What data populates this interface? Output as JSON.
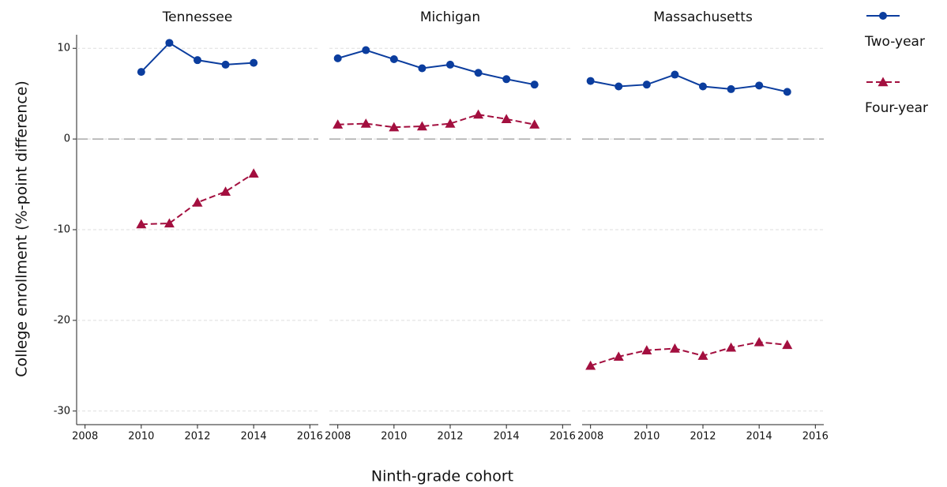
{
  "chart_data": {
    "type": "line",
    "x_label": "Ninth-grade cohort",
    "y_label": "College enrollment (%-point difference)",
    "xlim": [
      2007.7,
      2016.3
    ],
    "xticks": [
      2008,
      2010,
      2012,
      2014,
      2016
    ],
    "ylim": [
      -31.5,
      11.5
    ],
    "yticks": [
      -30,
      -20,
      -10,
      0,
      10
    ],
    "grid": true,
    "reference_line": 0,
    "legend": "right",
    "series": [
      {
        "name": "Two-year",
        "color": "#0b3d9e",
        "marker": "circle",
        "dashed": false
      },
      {
        "name": "Four-year",
        "color": "#a30f3f",
        "marker": "triangle",
        "dashed": true
      }
    ],
    "panels": [
      {
        "title": "Tennessee",
        "x": [
          2010,
          2011,
          2012,
          2013,
          2014
        ],
        "values": [
          [
            7.4,
            10.6,
            8.7,
            8.2,
            8.4
          ],
          [
            -9.4,
            -9.3,
            -7.0,
            -5.8,
            -3.8
          ]
        ]
      },
      {
        "title": "Michigan",
        "x": [
          2008,
          2009,
          2010,
          2011,
          2012,
          2013,
          2014,
          2015
        ],
        "values": [
          [
            8.9,
            9.8,
            8.8,
            7.8,
            8.2,
            7.3,
            6.6,
            6.0
          ],
          [
            1.6,
            1.7,
            1.3,
            1.4,
            1.7,
            2.7,
            2.2,
            1.6
          ]
        ]
      },
      {
        "title": "Massachusetts",
        "x": [
          2008,
          2009,
          2010,
          2011,
          2012,
          2013,
          2014,
          2015
        ],
        "values": [
          [
            6.4,
            5.8,
            6.0,
            7.1,
            5.8,
            5.5,
            5.9,
            5.2
          ],
          [
            -25.0,
            -24.0,
            -23.3,
            -23.1,
            -23.9,
            -23.0,
            -22.4,
            -22.7
          ]
        ]
      }
    ]
  }
}
